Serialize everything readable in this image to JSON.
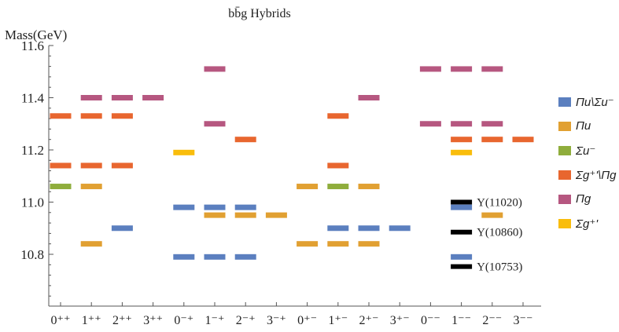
{
  "chart_data": {
    "type": "scatter",
    "title": "bb̄g Hybrids",
    "ylabel": "Mass(GeV)",
    "ylim": [
      10.6,
      11.6
    ],
    "yticks": [
      "10.8",
      "11.0",
      "11.2",
      "11.4",
      "11.6"
    ],
    "categories": [
      "0⁺⁺",
      "1⁺⁺",
      "2⁺⁺",
      "3⁺⁺",
      "0⁻⁺",
      "1⁻⁺",
      "2⁻⁺",
      "3⁻⁺",
      "0⁺⁻",
      "1⁺⁻",
      "2⁺⁻",
      "3⁺⁻",
      "0⁻⁻",
      "1⁻⁻",
      "2⁻⁻",
      "3⁻⁻"
    ],
    "grid": false,
    "legend_position": "right",
    "series": [
      {
        "name": "Πu\\Σu⁻",
        "color": "#5b7fbf",
        "offset": 0,
        "points": [
          [
            4,
            10.98
          ],
          [
            5,
            10.98
          ],
          [
            6,
            10.98
          ],
          [
            4,
            10.79
          ],
          [
            5,
            10.79
          ],
          [
            6,
            10.79
          ],
          [
            2,
            10.9
          ],
          [
            9,
            10.9
          ],
          [
            10,
            10.9
          ],
          [
            11,
            10.9
          ],
          [
            13,
            10.98
          ],
          [
            13,
            10.79
          ]
        ]
      },
      {
        "name": "Πu",
        "color": "#e1a032",
        "offset": 0,
        "points": [
          [
            1,
            11.06
          ],
          [
            1,
            10.84
          ],
          [
            5,
            10.95
          ],
          [
            6,
            10.95
          ],
          [
            7,
            10.95
          ],
          [
            8,
            11.06
          ],
          [
            8,
            10.84
          ],
          [
            9,
            10.84
          ],
          [
            10,
            10.84
          ],
          [
            10,
            11.06
          ],
          [
            14,
            10.95
          ]
        ]
      },
      {
        "name": "Σu⁻",
        "color": "#8fad3c",
        "offset": 0,
        "points": [
          [
            0,
            11.06
          ],
          [
            9,
            11.06
          ]
        ]
      },
      {
        "name": "Σg⁺'\\Πg",
        "color": "#e8662f",
        "offset": 0,
        "points": [
          [
            0,
            11.33
          ],
          [
            1,
            11.33
          ],
          [
            2,
            11.33
          ],
          [
            0,
            11.14
          ],
          [
            1,
            11.14
          ],
          [
            2,
            11.14
          ],
          [
            6,
            11.24
          ],
          [
            9,
            11.33
          ],
          [
            9,
            11.14
          ],
          [
            13,
            11.24
          ],
          [
            14,
            11.24
          ],
          [
            15,
            11.24
          ]
        ]
      },
      {
        "name": "Πg",
        "color": "#b65780",
        "offset": 0,
        "points": [
          [
            1,
            11.4
          ],
          [
            2,
            11.4
          ],
          [
            3,
            11.4
          ],
          [
            5,
            11.51
          ],
          [
            5,
            11.3
          ],
          [
            10,
            11.4
          ],
          [
            12,
            11.51
          ],
          [
            13,
            11.51
          ],
          [
            14,
            11.51
          ],
          [
            12,
            11.3
          ],
          [
            13,
            11.3
          ],
          [
            14,
            11.3
          ]
        ]
      },
      {
        "name": "Σg⁺'",
        "color": "#f9bd0c",
        "offset": 0,
        "points": [
          [
            4,
            11.19
          ],
          [
            13,
            11.19
          ]
        ]
      }
    ],
    "reference_levels": [
      {
        "label": "Υ(11020)",
        "mass": 11.0,
        "color": "#000000",
        "category": 13
      },
      {
        "label": "Υ(10860)",
        "mass": 10.885,
        "color": "#000000",
        "category": 13
      },
      {
        "label": "Υ(10753)",
        "mass": 10.753,
        "color": "#000000",
        "category": 13
      }
    ]
  },
  "legend": [
    {
      "label": "Πu\\Σu⁻",
      "color": "#5b7fbf"
    },
    {
      "label": "Πu",
      "color": "#e1a032"
    },
    {
      "label": "Σu⁻",
      "color": "#8fad3c"
    },
    {
      "label": "Σg⁺'\\Πg",
      "color": "#e8662f"
    },
    {
      "label": "Πg",
      "color": "#b65780"
    },
    {
      "label": "Σg⁺'",
      "color": "#f9bd0c"
    }
  ]
}
